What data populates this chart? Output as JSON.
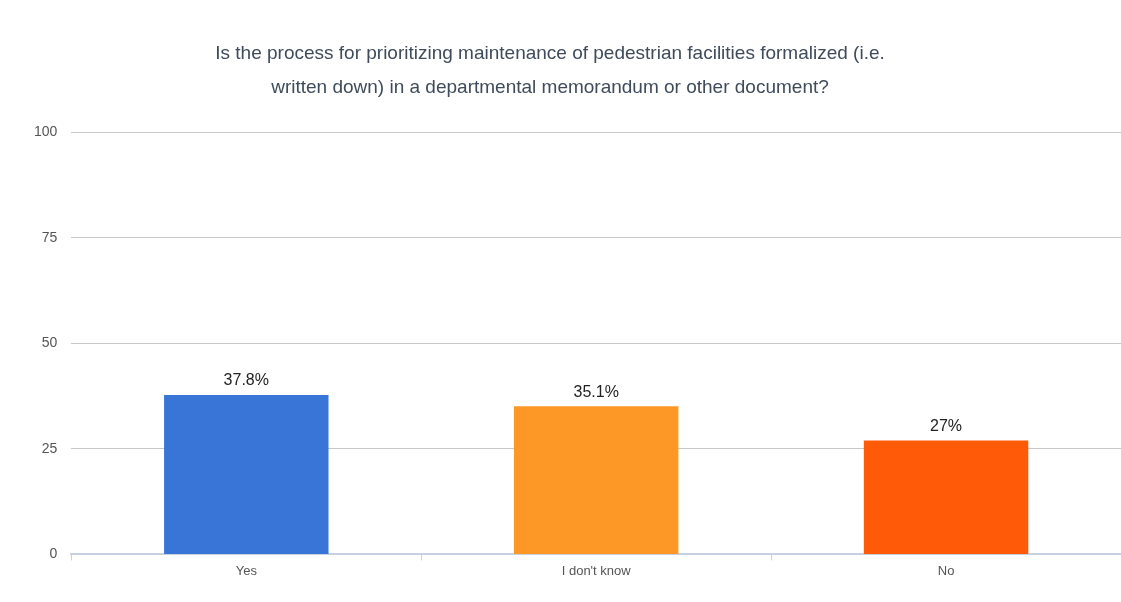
{
  "chart_data": {
    "type": "bar",
    "title": "Is the process for prioritizing maintenance of pedestrian facilities formalized (i.e. written down) in a departmental memorandum or other document?",
    "categories": [
      "Yes",
      "I don't know",
      "No"
    ],
    "values": [
      37.8,
      35.1,
      27
    ],
    "colors": [
      "#3875d7",
      "#fd9827",
      "#fe5a08"
    ],
    "value_labels": [
      "37.8%",
      "35.1%",
      "27%"
    ],
    "ylim": [
      0,
      100
    ],
    "yticks": [
      0,
      25,
      50,
      75,
      100
    ],
    "grid": "y",
    "legend": false
  }
}
